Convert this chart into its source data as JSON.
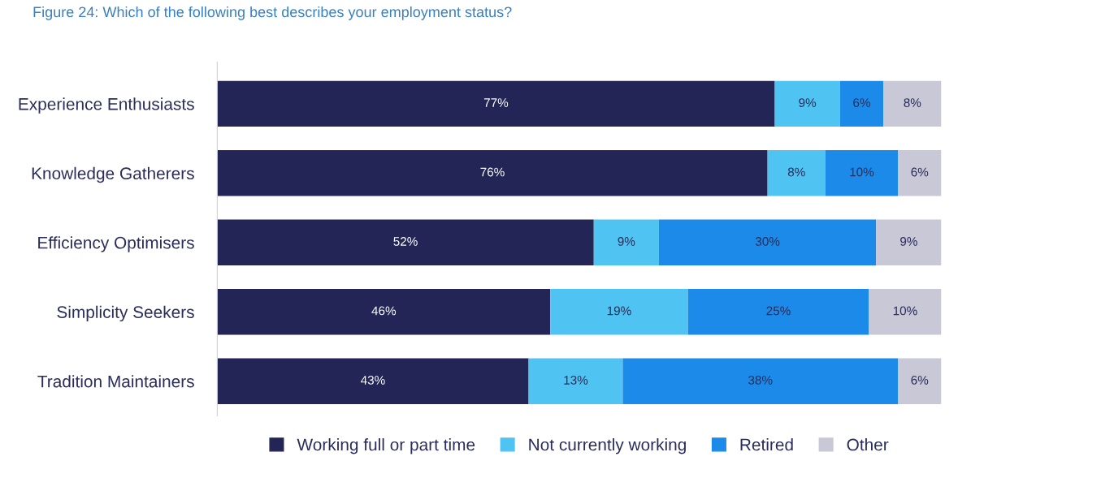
{
  "chart_data": {
    "type": "bar",
    "orientation": "horizontal",
    "stacked": true,
    "title": "Figure 24: Which of the following best describes your employment status?",
    "categories": [
      "Experience Enthusiasts",
      "Knowledge Gatherers",
      "Efficiency Optimisers",
      "Simplicity Seekers",
      "Tradition Maintainers"
    ],
    "series": [
      {
        "name": "Working full or part time",
        "color": "#222555",
        "values": [
          77,
          76,
          52,
          46,
          43
        ],
        "value_labels": [
          "77%",
          "76%",
          "52%",
          "46%",
          "43%"
        ]
      },
      {
        "name": "Not currently working",
        "color": "#4fc4f2",
        "values": [
          9,
          8,
          9,
          19,
          13
        ],
        "value_labels": [
          "9%",
          "8%",
          "9%",
          "19%",
          "13%"
        ]
      },
      {
        "name": "Retired",
        "color": "#1b8ae9",
        "values": [
          6,
          10,
          30,
          25,
          38
        ],
        "value_labels": [
          "6%",
          "10%",
          "30%",
          "25%",
          "38%"
        ]
      },
      {
        "name": "Other",
        "color": "#c8c8d6",
        "values": [
          8,
          6,
          9,
          10,
          6
        ],
        "value_labels": [
          "8%",
          "6%",
          "9%",
          "10%",
          "6%"
        ]
      }
    ],
    "legend": "bottom",
    "grid": false,
    "tick_labels": "y"
  }
}
